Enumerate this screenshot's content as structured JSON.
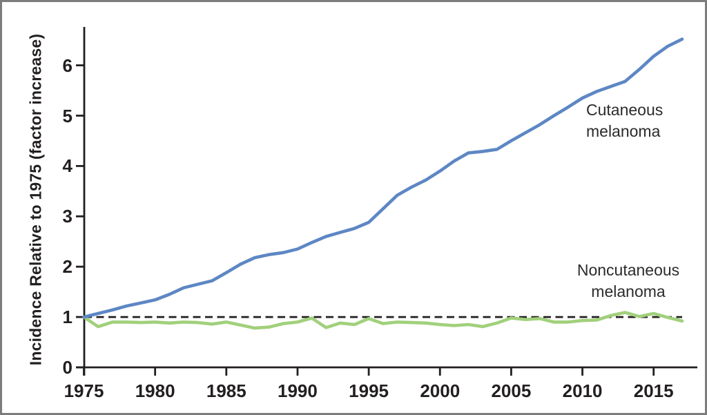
{
  "chart_data": {
    "type": "line",
    "title": "",
    "xlabel": "",
    "ylabel": "Incidence Relative to 1975 (factor increase)",
    "xlim": [
      1975,
      2017
    ],
    "ylim": [
      0,
      6.8
    ],
    "grid": false,
    "legend_position": "annotated-inline",
    "x_ticks": [
      1975,
      1980,
      1985,
      1990,
      1995,
      2000,
      2005,
      2010,
      2015
    ],
    "y_ticks": [
      0,
      1,
      2,
      3,
      4,
      5,
      6
    ],
    "reference_line": {
      "y": 1,
      "style": "dashed",
      "color": "#231f20"
    },
    "x": [
      1975,
      1976,
      1977,
      1978,
      1979,
      1980,
      1981,
      1982,
      1983,
      1984,
      1985,
      1986,
      1987,
      1988,
      1989,
      1990,
      1991,
      1992,
      1993,
      1994,
      1995,
      1996,
      1997,
      1998,
      1999,
      2000,
      2001,
      2002,
      2003,
      2004,
      2005,
      2006,
      2007,
      2008,
      2009,
      2010,
      2011,
      2012,
      2013,
      2014,
      2015,
      2016,
      2017
    ],
    "series": [
      {
        "name": "Cutaneous melanoma",
        "color": "#5d87c4",
        "values": [
          1.0,
          1.07,
          1.14,
          1.22,
          1.28,
          1.34,
          1.45,
          1.58,
          1.65,
          1.72,
          1.88,
          2.05,
          2.18,
          2.24,
          2.28,
          2.35,
          2.48,
          2.6,
          2.68,
          2.76,
          2.88,
          3.15,
          3.42,
          3.58,
          3.72,
          3.9,
          4.1,
          4.26,
          4.29,
          4.33,
          4.5,
          4.66,
          4.82,
          5.0,
          5.17,
          5.35,
          5.48,
          5.58,
          5.68,
          5.92,
          6.18,
          6.38,
          6.52
        ]
      },
      {
        "name": "Noncutaneous melanoma",
        "color": "#a1d07b",
        "values": [
          1.0,
          0.81,
          0.9,
          0.9,
          0.89,
          0.9,
          0.88,
          0.9,
          0.89,
          0.86,
          0.9,
          0.84,
          0.78,
          0.8,
          0.87,
          0.9,
          0.98,
          0.79,
          0.88,
          0.85,
          0.97,
          0.87,
          0.9,
          0.89,
          0.88,
          0.85,
          0.83,
          0.85,
          0.81,
          0.88,
          0.98,
          0.95,
          0.97,
          0.9,
          0.9,
          0.93,
          0.94,
          1.03,
          1.09,
          1.01,
          1.07,
          0.99,
          0.92
        ]
      }
    ],
    "annotations": {
      "cutaneous_label": "Cutaneous melanoma",
      "noncutaneous_label": "Noncutaneous melanoma"
    }
  },
  "frame": {
    "border_color": "#7c7c7c",
    "background": "#ffffff",
    "axis_color": "#231f20",
    "text_color": "#231f20"
  }
}
